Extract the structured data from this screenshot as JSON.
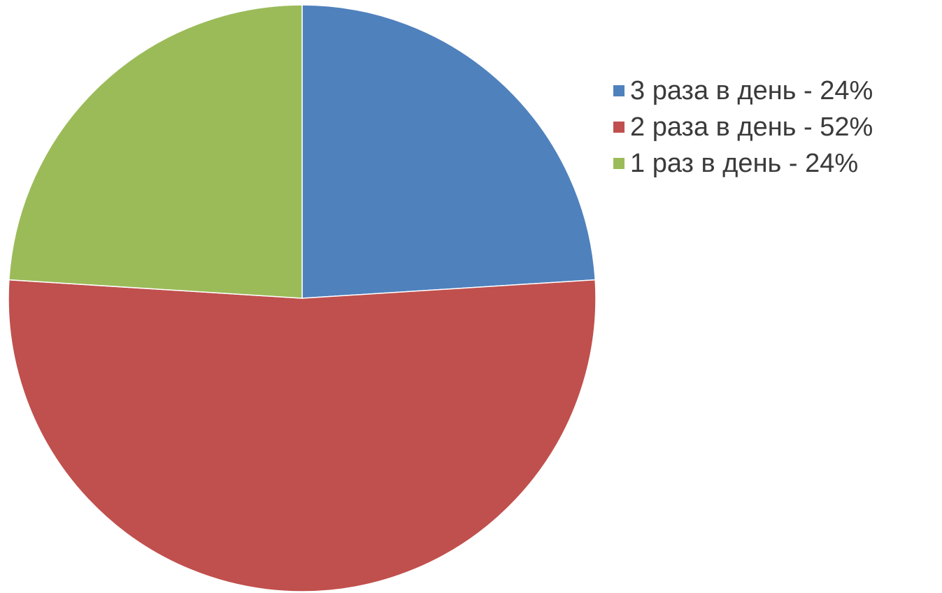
{
  "chart_data": {
    "type": "pie",
    "title": "",
    "slices": [
      {
        "label": "3 раза в день - 24%",
        "value": 24,
        "color": "#4f81bd"
      },
      {
        "label": "2 раза в день - 52%",
        "value": 52,
        "color": "#c0504d"
      },
      {
        "label": "1 раз в день - 24%",
        "value": 24,
        "color": "#9bbb59"
      }
    ],
    "legend_position": "right",
    "start_angle": "12 o'clock",
    "direction": "clockwise"
  }
}
